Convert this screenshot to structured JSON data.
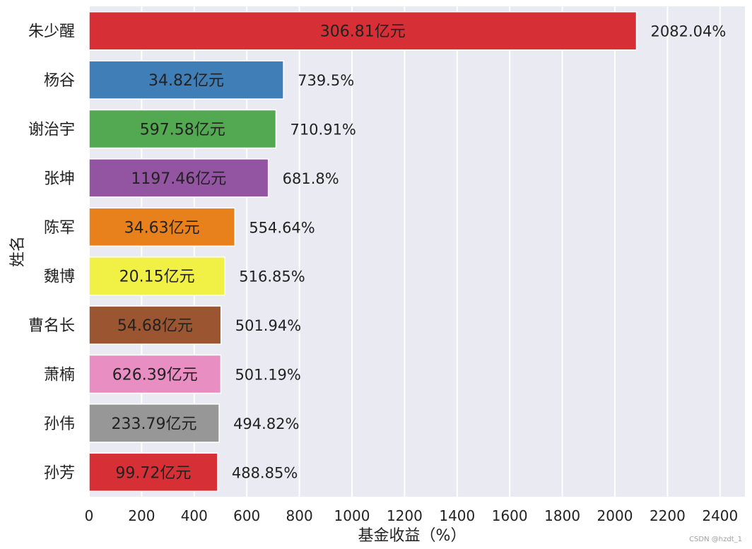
{
  "chart_data": {
    "type": "bar",
    "orientation": "horizontal",
    "xlabel": "基金收益（%）",
    "ylabel": "姓名",
    "xlim": [
      0,
      2500
    ],
    "xticks": [
      0,
      200,
      400,
      600,
      800,
      1000,
      1200,
      1400,
      1600,
      1800,
      2000,
      2200,
      2400
    ],
    "grid": true,
    "categories": [
      "朱少醒",
      "杨谷",
      "谢治宇",
      "张坤",
      "陈军",
      "魏博",
      "曹名长",
      "萧楠",
      "孙伟",
      "孙芳"
    ],
    "values": [
      2082.04,
      739.5,
      710.91,
      681.8,
      554.64,
      516.85,
      501.94,
      501.19,
      494.82,
      488.85
    ],
    "value_labels": [
      "2082.04%",
      "739.5%",
      "710.91%",
      "681.8%",
      "554.64%",
      "516.85%",
      "501.94%",
      "501.19%",
      "494.82%",
      "488.85%"
    ],
    "inner_labels": [
      "306.81亿元",
      "34.82亿元",
      "597.58亿元",
      "1197.46亿元",
      "34.63亿元",
      "20.15亿元",
      "54.68亿元",
      "626.39亿元",
      "233.79亿元",
      "99.72亿元"
    ],
    "colors": [
      "#d62f35",
      "#3f7eb6",
      "#53a852",
      "#9354a1",
      "#e8811c",
      "#f0f045",
      "#9b5631",
      "#e88ec2",
      "#979797",
      "#d62f35"
    ]
  },
  "watermark": "CSDN @hzdt_1"
}
